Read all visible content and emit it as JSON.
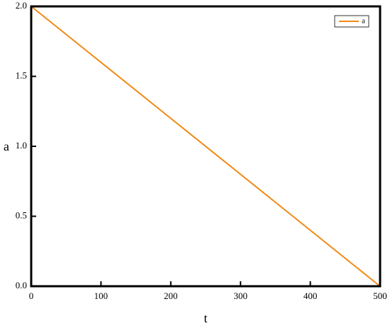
{
  "chart_data": {
    "type": "line",
    "x_label": "t",
    "y_label": "a",
    "x": [
      0,
      500
    ],
    "series": [
      {
        "name": "a",
        "color": "#f08a17",
        "values": [
          2.0,
          0.0
        ]
      }
    ],
    "xlim": [
      0,
      500
    ],
    "xticks": [
      0,
      100,
      200,
      300,
      400,
      500
    ],
    "ylim": [
      0,
      2
    ],
    "yticks": [
      {
        "value": 0,
        "label": "0.0"
      },
      0.5,
      {
        "value": 1,
        "label": "1.0"
      },
      1.5,
      {
        "value": 2,
        "label": "2.0"
      }
    ],
    "legend": "upper right",
    "grid": false
  }
}
